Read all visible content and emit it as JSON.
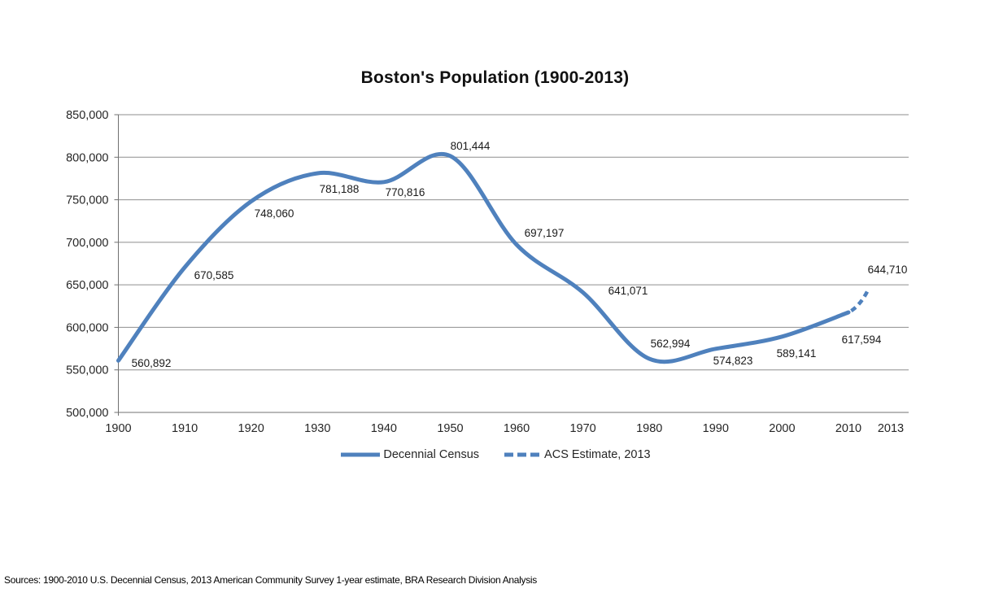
{
  "header": {
    "title": "Boston's Population (1900-2013)"
  },
  "footer": {
    "source_note": "Sources: 1900-2010 U.S. Decennial Census, 2013 American Community Survey 1-year estimate, BRA Research Division Analysis"
  },
  "legend": {
    "items": [
      {
        "label": "Decennial Census",
        "style": "solid"
      },
      {
        "label": "ACS Estimate, 2013",
        "style": "dashed"
      }
    ]
  },
  "colors": {
    "series_blue": "#4F81BD",
    "gridline": "#8E8E8E",
    "axis_line": "#707070",
    "axis_text": "#262626",
    "label_text": "#1a1a1a"
  },
  "chart_data": {
    "type": "line",
    "title": "Boston's Population (1900-2013)",
    "xlabel": "",
    "ylabel": "",
    "x": [
      1900,
      1910,
      1920,
      1930,
      1940,
      1950,
      1960,
      1970,
      1980,
      1990,
      2000,
      2010,
      2013
    ],
    "series": [
      {
        "name": "Decennial Census",
        "style": "solid",
        "x": [
          1900,
          1910,
          1920,
          1930,
          1940,
          1950,
          1960,
          1970,
          1980,
          1990,
          2000,
          2010
        ],
        "values": [
          560892,
          670585,
          748060,
          781188,
          770816,
          801444,
          697197,
          641071,
          562994,
          574823,
          589141,
          617594
        ]
      },
      {
        "name": "ACS Estimate, 2013",
        "style": "dashed",
        "x": [
          2010,
          2013
        ],
        "values": [
          617594,
          644710
        ]
      }
    ],
    "point_labels": [
      "560,892",
      "670,585",
      "748,060",
      "781,188",
      "770,816",
      "801,444",
      "697,197",
      "641,071",
      "562,994",
      "574,823",
      "589,141",
      "617,594",
      "644,710"
    ],
    "y_tick_labels": [
      "850,000",
      "800,000",
      "750,000",
      "700,000",
      "650,000",
      "600,000",
      "550,000",
      "500,000"
    ],
    "x_tick_labels": [
      "1900",
      "1910",
      "1920",
      "1930",
      "1940",
      "1950",
      "1960",
      "1970",
      "1980",
      "1990",
      "2000",
      "2010",
      "2013"
    ],
    "ylim": [
      500000,
      850000
    ],
    "y_tick_step": 50000,
    "grid": "horizontal-only",
    "legend_position": "bottom",
    "smoothed": true
  }
}
